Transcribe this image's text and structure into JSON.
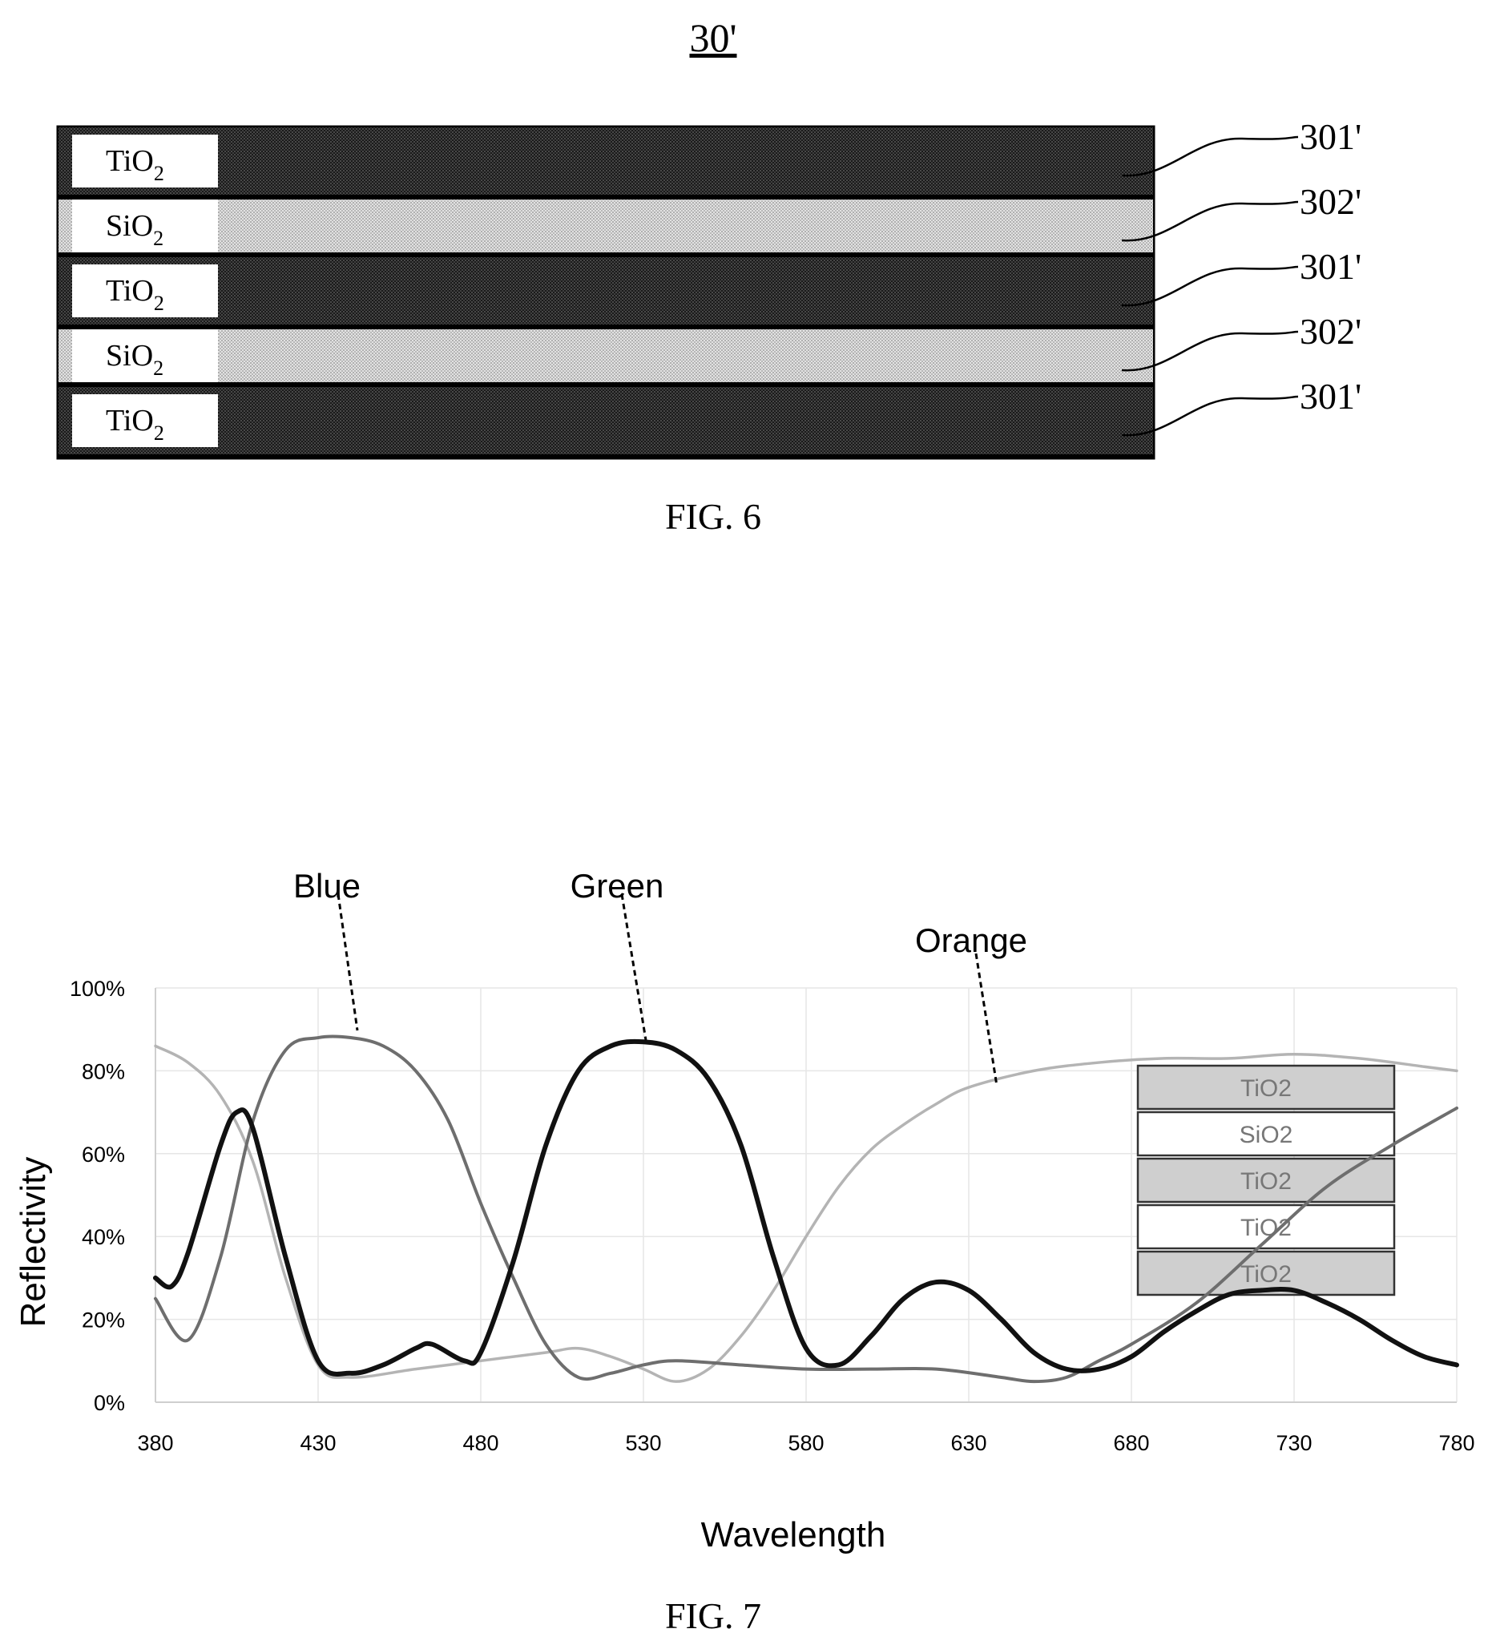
{
  "fig6": {
    "ref_label": "30'",
    "caption": "FIG. 6",
    "layers": [
      {
        "material": "TiO",
        "subscript": "2",
        "ref": "301'",
        "kind": "dark"
      },
      {
        "material": "SiO",
        "subscript": "2",
        "ref": "302'",
        "kind": "light"
      },
      {
        "material": "TiO",
        "subscript": "2",
        "ref": "301'",
        "kind": "dark"
      },
      {
        "material": "SiO",
        "subscript": "2",
        "ref": "302'",
        "kind": "light"
      },
      {
        "material": "TiO",
        "subscript": "2",
        "ref": "301'",
        "kind": "dark"
      }
    ]
  },
  "fig7": {
    "caption": "FIG. 7",
    "inset_layers": [
      "TiO2",
      "SiO2",
      "TiO2",
      "TiO2",
      "TiO2"
    ],
    "colors": {
      "blue": "#6e6e6e",
      "green": "#111111",
      "orange": "#b4b4b4"
    }
  },
  "chart_data": {
    "type": "line",
    "xlabel": "Wavelength",
    "ylabel": "Reflectivity",
    "xlim": [
      380,
      780
    ],
    "ylim": [
      0,
      100
    ],
    "x_ticks": [
      "380",
      "430",
      "480",
      "530",
      "580",
      "630",
      "680",
      "730",
      "780"
    ],
    "y_ticks": [
      "0%",
      "20%",
      "40%",
      "60%",
      "80%",
      "100%"
    ],
    "grid": true,
    "series": [
      {
        "name": "Blue",
        "x": [
          380,
          390,
          400,
          410,
          420,
          430,
          440,
          450,
          460,
          470,
          480,
          490,
          500,
          510,
          520,
          530,
          540,
          560,
          580,
          600,
          620,
          640,
          650,
          660,
          670,
          680,
          700,
          720,
          740,
          760,
          780
        ],
        "y": [
          25,
          15,
          35,
          68,
          85,
          88,
          88,
          86,
          80,
          68,
          48,
          30,
          14,
          6,
          7,
          9,
          10,
          9,
          8,
          8,
          8,
          6,
          5,
          6,
          10,
          14,
          24,
          38,
          52,
          62,
          71
        ]
      },
      {
        "name": "Green",
        "x": [
          380,
          385,
          390,
          400,
          405,
          410,
          420,
          430,
          440,
          450,
          460,
          465,
          475,
          480,
          490,
          500,
          510,
          520,
          530,
          540,
          550,
          560,
          570,
          580,
          590,
          600,
          610,
          620,
          630,
          640,
          650,
          660,
          670,
          680,
          690,
          700,
          710,
          720,
          730,
          740,
          750,
          760,
          770,
          780
        ],
        "y": [
          30,
          28,
          36,
          62,
          70,
          66,
          35,
          10,
          7,
          9,
          13,
          14,
          10,
          12,
          34,
          62,
          80,
          86,
          87,
          85,
          78,
          62,
          35,
          13,
          9,
          16,
          25,
          29,
          27,
          20,
          12,
          8,
          8,
          11,
          17,
          22,
          26,
          27,
          27,
          24,
          20,
          15,
          11,
          9
        ]
      },
      {
        "name": "Orange",
        "x": [
          380,
          390,
          400,
          410,
          420,
          430,
          440,
          460,
          480,
          500,
          510,
          520,
          530,
          540,
          550,
          560,
          570,
          580,
          590,
          600,
          610,
          620,
          630,
          650,
          670,
          690,
          710,
          730,
          750,
          770,
          780
        ],
        "y": [
          86,
          82,
          74,
          58,
          30,
          9,
          6,
          8,
          10,
          12,
          13,
          11,
          8,
          5,
          8,
          16,
          27,
          40,
          52,
          61,
          67,
          72,
          76,
          80,
          82,
          83,
          83,
          84,
          83,
          81,
          80
        ]
      }
    ]
  }
}
